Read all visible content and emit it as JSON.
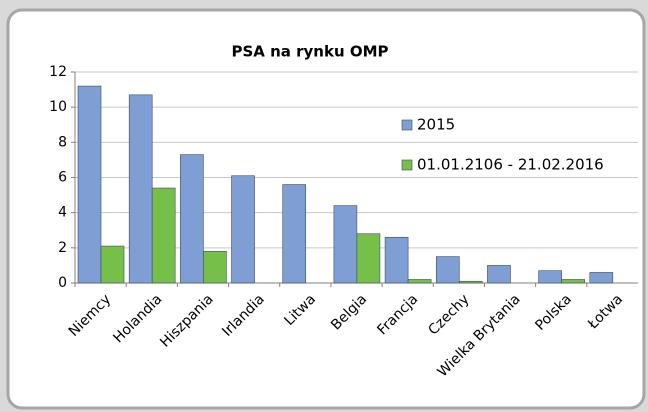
{
  "chart_data": {
    "type": "bar",
    "title": "PSA na rynku OMP",
    "categories": [
      "Niemcy",
      "Holandia",
      "Hiszpania",
      "Irlandia",
      "Litwa",
      "Belgia",
      "Francja",
      "Czechy",
      "Wielka Brytania",
      "Polska",
      "Łotwa"
    ],
    "series": [
      {
        "name": "2015",
        "color": "#7f9fd4",
        "values": [
          11.2,
          10.7,
          7.3,
          6.1,
          5.6,
          4.4,
          2.6,
          1.5,
          1.0,
          0.7,
          0.6
        ]
      },
      {
        "name": "01.01.2106 - 21.02.2016",
        "color": "#76c04a",
        "values": [
          2.1,
          5.4,
          1.8,
          null,
          null,
          2.8,
          0.2,
          0.1,
          null,
          0.2,
          null
        ]
      }
    ],
    "ylim": [
      0,
      12
    ],
    "yticks": [
      0,
      2,
      4,
      6,
      8,
      10,
      12
    ],
    "grid": true
  }
}
